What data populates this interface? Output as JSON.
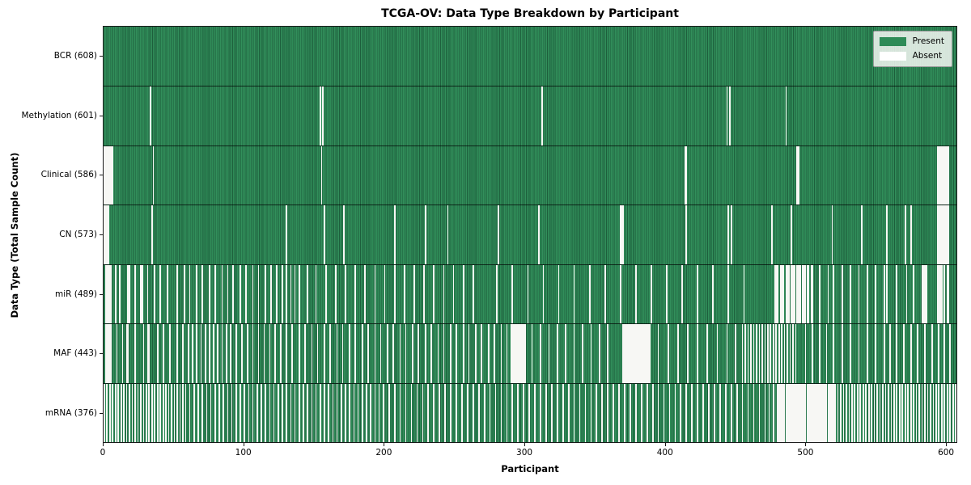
{
  "chart_data": {
    "type": "heatmap",
    "title": "TCGA-OV: Data Type Breakdown by Participant",
    "xlabel": "Participant",
    "ylabel": "Data Type (Total Sample Count)",
    "x_ticks": [
      0,
      100,
      200,
      300,
      400,
      500,
      600
    ],
    "n_participants": 608,
    "xlim": [
      0,
      608
    ],
    "grid": false,
    "legend": {
      "position": "upper-right",
      "entries": [
        {
          "label": "Present",
          "color": "#2e8b57"
        },
        {
          "label": "Absent",
          "color": "#ffffff"
        }
      ]
    },
    "colors": {
      "present": "#2e8b57",
      "present_edge": "#1d5f3c",
      "absent": "#f7f7f4",
      "separator": "#1a1a1a"
    },
    "rows": [
      {
        "key": "bcr",
        "label": "BCR (608)",
        "count": 608,
        "absent": []
      },
      {
        "key": "methylation",
        "label": "Methylation (601)",
        "count": 601,
        "absent": [
          33,
          154,
          156,
          312,
          444,
          446,
          486
        ]
      },
      {
        "key": "clinical",
        "label": "Clinical (586)",
        "count": 586,
        "absent": [
          0,
          1,
          2,
          3,
          4,
          5,
          6,
          35,
          155,
          414,
          415,
          494,
          495,
          594,
          595,
          596,
          597,
          598,
          599,
          600,
          601,
          602
        ]
      },
      {
        "key": "cn",
        "label": "CN (573)",
        "count": 573,
        "absent": [
          0,
          1,
          2,
          3,
          34,
          130,
          157,
          171,
          207,
          229,
          245,
          281,
          310,
          368,
          369,
          370,
          415,
          445,
          447,
          476,
          490,
          519,
          540,
          558,
          571,
          575,
          594,
          595,
          596,
          597,
          598,
          599,
          600,
          601,
          602
        ]
      },
      {
        "key": "mir",
        "label": "miR (489)",
        "count": 489,
        "absent": [
          1,
          2,
          3,
          4,
          5,
          8,
          11,
          17,
          18,
          22,
          26,
          27,
          31,
          36,
          40,
          45,
          52,
          57,
          61,
          66,
          70,
          75,
          79,
          84,
          88,
          92,
          97,
          101,
          106,
          110,
          115,
          119,
          123,
          127,
          130,
          133,
          136,
          139,
          145,
          151,
          158,
          165,
          172,
          179,
          186,
          193,
          200,
          207,
          214,
          221,
          228,
          235,
          242,
          249,
          256,
          263,
          280,
          291,
          302,
          313,
          324,
          335,
          346,
          357,
          368,
          379,
          390,
          401,
          412,
          423,
          434,
          445,
          456,
          478,
          479,
          480,
          482,
          483,
          484,
          486,
          487,
          488,
          490,
          491,
          492,
          494,
          495,
          496,
          498,
          499,
          500,
          501,
          502,
          504,
          505,
          510,
          516,
          520,
          526,
          532,
          538,
          544,
          550,
          556,
          558,
          565,
          572,
          577,
          583,
          584,
          585,
          586,
          594,
          595,
          596,
          597,
          599,
          601,
          602
        ]
      },
      {
        "key": "maf",
        "label": "MAF (443)",
        "count": 443,
        "absent": [
          1,
          2,
          3,
          4,
          5,
          9,
          13,
          16,
          17,
          22,
          28,
          31,
          32,
          38,
          42,
          47,
          52,
          56,
          60,
          63,
          66,
          69,
          72,
          75,
          78,
          81,
          84,
          87,
          90,
          94,
          98,
          102,
          106,
          110,
          114,
          118,
          122,
          126,
          130,
          134,
          139,
          143,
          148,
          152,
          157,
          161,
          166,
          170,
          175,
          179,
          184,
          188,
          193,
          197,
          202,
          206,
          211,
          215,
          220,
          224,
          229,
          233,
          238,
          242,
          247,
          251,
          256,
          260,
          265,
          269,
          274,
          278,
          283,
          287,
          290,
          291,
          292,
          293,
          294,
          295,
          296,
          297,
          298,
          299,
          300,
          305,
          311,
          317,
          323,
          329,
          335,
          341,
          347,
          353,
          359,
          370,
          371,
          372,
          373,
          374,
          375,
          376,
          377,
          378,
          379,
          380,
          381,
          382,
          383,
          384,
          385,
          386,
          387,
          388,
          389,
          395,
          402,
          409,
          416,
          423,
          430,
          437,
          444,
          450,
          455,
          457,
          459,
          461,
          463,
          465,
          467,
          469,
          471,
          473,
          475,
          477,
          479,
          481,
          483,
          485,
          487,
          489,
          491,
          493,
          500,
          505,
          510,
          515,
          520,
          526,
          532,
          538,
          544,
          550,
          556,
          560,
          565,
          570,
          575,
          580,
          585,
          590,
          595,
          599,
          603
        ]
      },
      {
        "key": "mrna",
        "label": "mRNA (376)",
        "count": 376,
        "absent": [
          0,
          2,
          4,
          6,
          8,
          10,
          12,
          14,
          16,
          18,
          20,
          22,
          24,
          26,
          28,
          30,
          32,
          34,
          36,
          38,
          40,
          42,
          44,
          46,
          48,
          50,
          52,
          54,
          56,
          58,
          61,
          64,
          67,
          70,
          73,
          76,
          79,
          82,
          85,
          88,
          91,
          94,
          97,
          100,
          103,
          106,
          109,
          112,
          115,
          118,
          121,
          124,
          127,
          130,
          133,
          136,
          139,
          142,
          145,
          148,
          151,
          154,
          157,
          160,
          163,
          166,
          169,
          172,
          175,
          178,
          181,
          184,
          187,
          190,
          193,
          196,
          199,
          203,
          207,
          211,
          215,
          219,
          223,
          227,
          231,
          235,
          239,
          243,
          247,
          251,
          255,
          259,
          263,
          267,
          271,
          275,
          279,
          283,
          287,
          291,
          295,
          299,
          303,
          307,
          311,
          315,
          319,
          323,
          327,
          331,
          335,
          339,
          343,
          347,
          351,
          355,
          359,
          363,
          367,
          371,
          375,
          379,
          383,
          387,
          391,
          395,
          399,
          403,
          407,
          411,
          415,
          419,
          423,
          427,
          431,
          435,
          439,
          443,
          447,
          451,
          455,
          459,
          463,
          467,
          471,
          474,
          477,
          480,
          481,
          482,
          483,
          484,
          485,
          486,
          487,
          488,
          489,
          490,
          491,
          492,
          493,
          494,
          495,
          496,
          497,
          498,
          499,
          500,
          501,
          502,
          503,
          504,
          505,
          506,
          507,
          508,
          509,
          510,
          511,
          512,
          513,
          514,
          515,
          516,
          517,
          518,
          519,
          520,
          521,
          523,
          525,
          527,
          529,
          531,
          533,
          535,
          537,
          539,
          541,
          543,
          545,
          547,
          549,
          551,
          553,
          555,
          557,
          559,
          561,
          563,
          565,
          567,
          569,
          571,
          573,
          575,
          577,
          579,
          581,
          583,
          585,
          587,
          589,
          591,
          593,
          595,
          597,
          599,
          601,
          603,
          605,
          607
        ]
      }
    ]
  }
}
